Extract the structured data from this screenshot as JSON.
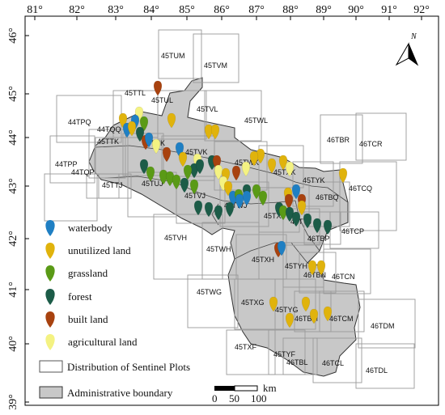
{
  "lon_ticks": [
    "81°",
    "82°",
    "83°",
    "84°",
    "85°",
    "86°",
    "87°",
    "88°",
    "89°",
    "90°",
    "91°",
    "92°"
  ],
  "lat_ticks": [
    "46°",
    "45°",
    "44°",
    "43°",
    "42°",
    "41°",
    "40°",
    "39°"
  ],
  "north_label": "N",
  "tile_labels": [
    "45TUM",
    "45TVM",
    "45TTL",
    "45TUL",
    "45TVL",
    "45TWL",
    "44TPQ",
    "44TQQ",
    "45TTK",
    "45TUK",
    "45TVK",
    "45TWK",
    "45TXK",
    "46TBR",
    "46TCR",
    "44TPP",
    "44TQP",
    "45TTJ",
    "45TUJ",
    "45TVJ",
    "45TWJ",
    "45TXJ",
    "45TYK",
    "46TBQ",
    "46TCQ",
    "45TYJ",
    "46TBP",
    "46TCP",
    "45TVH",
    "45TWH",
    "45TXH",
    "45TYH",
    "46TBN",
    "46TCN",
    "45TWG",
    "45TXG",
    "45TYG",
    "46TBM",
    "46TCM",
    "46TDM",
    "45TXF",
    "45TYF",
    "46TBL",
    "46TCL",
    "46TDL"
  ],
  "legend": {
    "categories": [
      {
        "label": "waterbody",
        "color": "#1f7fc3"
      },
      {
        "label": "unutilized land",
        "color": "#e0b30c"
      },
      {
        "label": "grassland",
        "color": "#5a9a16"
      },
      {
        "label": "forest",
        "color": "#1c5c48"
      },
      {
        "label": "built land",
        "color": "#a8420f"
      },
      {
        "label": "agricultural land",
        "color": "#f4f282"
      }
    ],
    "sentinel_label": "Distribution of Sentinel Plots",
    "admin_label": "Administrative boundary"
  },
  "scalebar": {
    "ticks": [
      "0",
      "50",
      "100"
    ],
    "unit": "km"
  },
  "colors": {
    "admin_fill": "#c8c8c8",
    "tile_stroke": "#9a9a9a",
    "boundary_stroke": "#333333"
  }
}
